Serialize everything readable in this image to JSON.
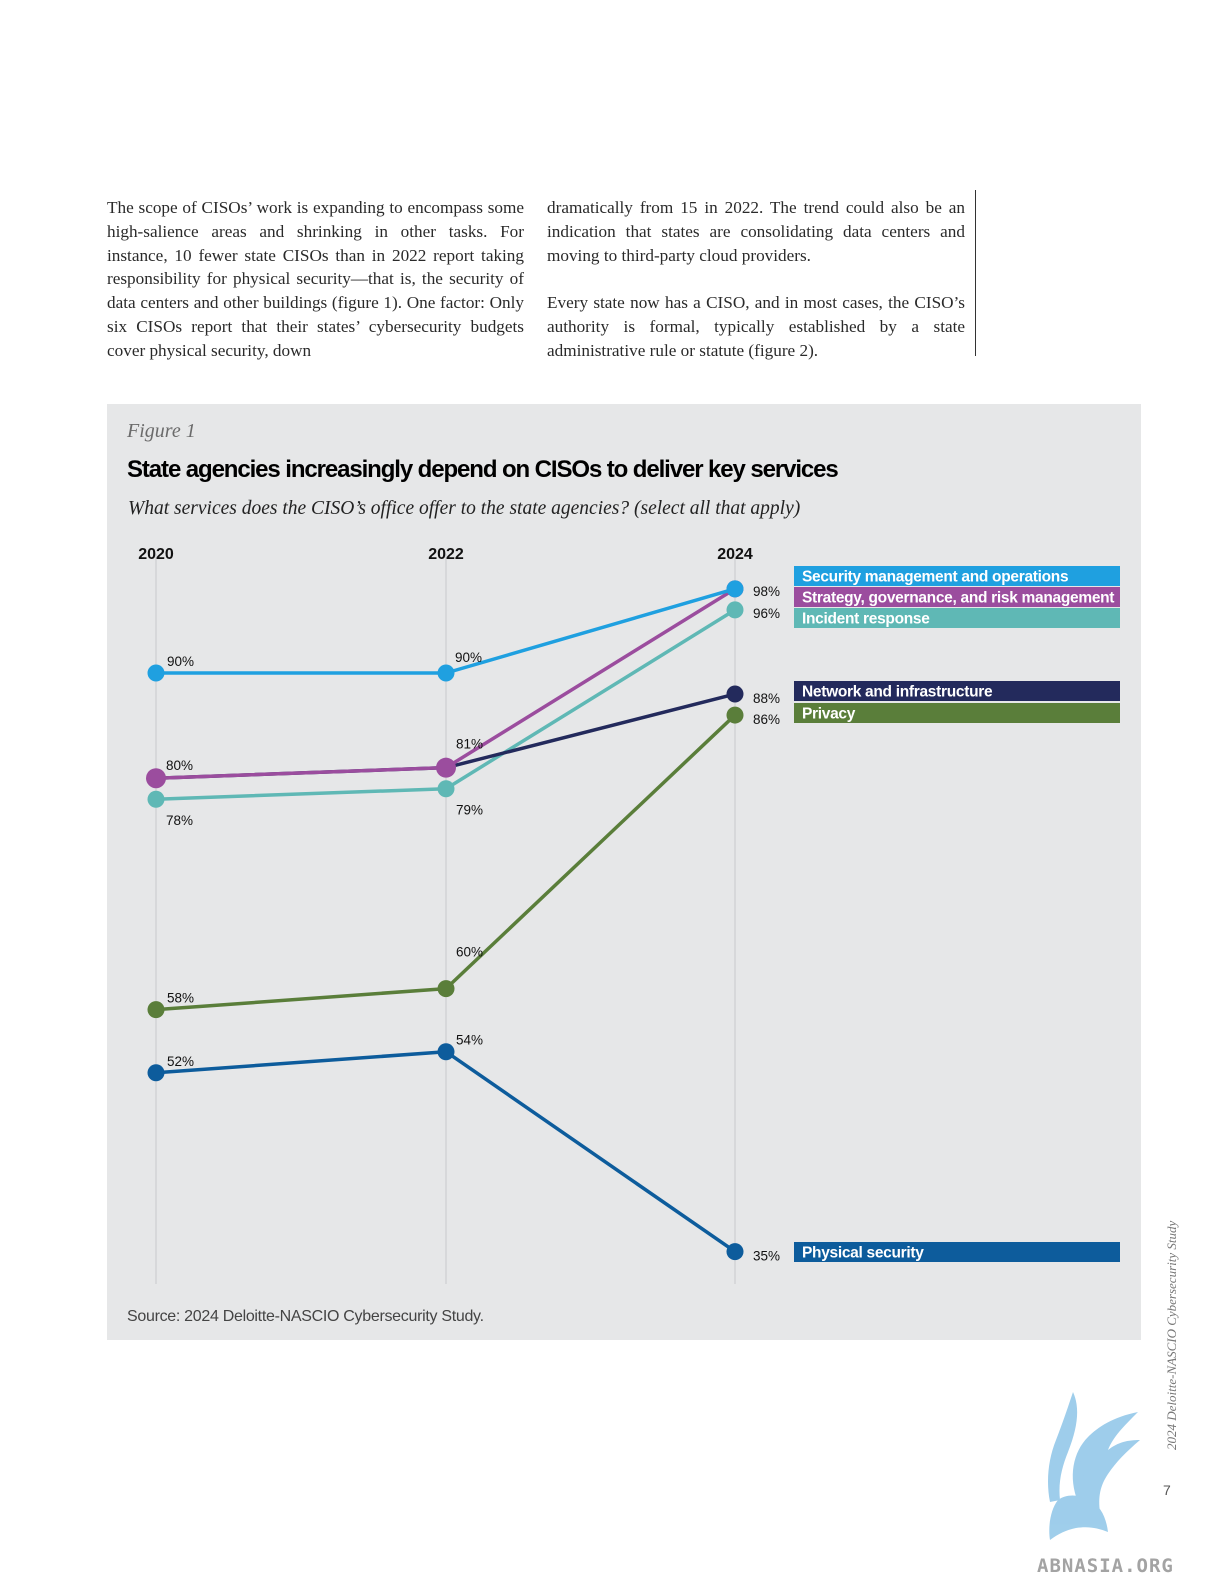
{
  "body_text": {
    "left_column": "The scope of CISOs’ work is expanding to encompass some high-salience areas and shrinking in other tasks. For instance, 10 fewer state CISOs than in 2022 report taking responsibility for physical security—that is, the security of data centers and other buildings (figure 1). One factor: Only six CISOs report that their states’ cybersecurity budgets cover physical security, down",
    "right_column_p1": "dramatically from 15 in 2022. The trend could also be an indication that states are consolidating data centers and moving to third-party cloud providers.",
    "right_column_p2": "Every state now has a CISO, and in most cases, the CISO’s authority is formal, typically established by a state administrative rule or statute (figure 2)."
  },
  "figure": {
    "label": "Figure 1",
    "title": "State agencies increasingly depend on CISOs to deliver key services",
    "subtitle": "What services does the CISO’s office offer to the state agencies? (select all that apply)",
    "source": "Source: 2024 Deloitte-NASCIO Cybersecurity Study."
  },
  "chart_data": {
    "type": "line",
    "title": "State agencies increasingly depend on CISOs to deliver key services",
    "x": [
      "2020",
      "2022",
      "2024"
    ],
    "value_unit": "%",
    "grid": false,
    "legend_position": "right",
    "series": [
      {
        "name": "Security management and operations",
        "color": "#1fa0e0",
        "values": [
          90,
          90,
          98
        ],
        "labels": [
          "90%",
          "90%",
          "98%"
        ]
      },
      {
        "name": "Strategy, governance, and risk management",
        "color": "#9b4d9e",
        "values": [
          80,
          81,
          98
        ],
        "labels": [
          "80%",
          "81%",
          ""
        ]
      },
      {
        "name": "Incident response",
        "color": "#5fb8b5",
        "values": [
          78,
          79,
          96
        ],
        "labels": [
          "78%",
          "79%",
          "96%"
        ]
      },
      {
        "name": "Network and infrastructure",
        "color": "#232a5c",
        "values": [
          80,
          81,
          88
        ],
        "labels": [
          "",
          "",
          "88%"
        ]
      },
      {
        "name": "Privacy",
        "color": "#5a7e3a",
        "values": [
          58,
          60,
          86
        ],
        "labels": [
          "58%",
          "60%",
          "86%"
        ]
      },
      {
        "name": "Physical security",
        "color": "#0d5c9c",
        "values": [
          52,
          54,
          35
        ],
        "labels": [
          "52%",
          "54%",
          "35%"
        ]
      }
    ]
  },
  "page": {
    "side_note": "2024 Deloitte-NASCIO Cybersecurity Study",
    "page_number": "7",
    "watermark": "ABNASIA.ORG"
  }
}
